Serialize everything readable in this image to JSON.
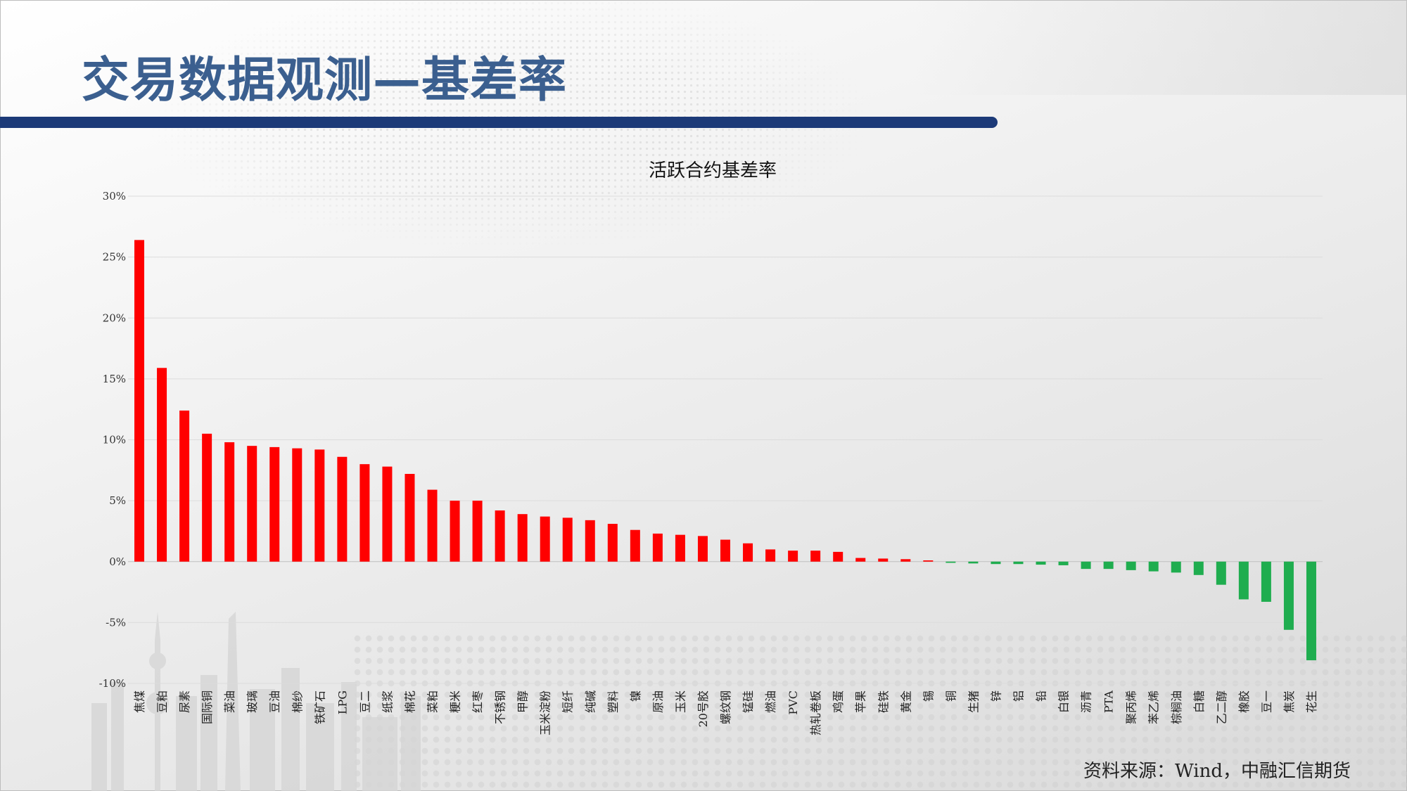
{
  "page": {
    "title": "交易数据观测—基差率",
    "source_note": "资料来源：Wind，中融汇信期货"
  },
  "colors": {
    "positive": "#ff0000",
    "negative": "#1fad4f",
    "header_bar": "#1c3a78",
    "title": "#3b5f8f"
  },
  "chart_data": {
    "type": "bar",
    "title": "活跃合约基差率",
    "xlabel": "",
    "ylabel": "",
    "ylim": [
      -10,
      30
    ],
    "yticks": [
      {
        "value": 30,
        "label": "30%"
      },
      {
        "value": 25,
        "label": "25%"
      },
      {
        "value": 20,
        "label": "20%"
      },
      {
        "value": 15,
        "label": "15%"
      },
      {
        "value": 10,
        "label": "10%"
      },
      {
        "value": 5,
        "label": "5%"
      },
      {
        "value": 0,
        "label": "0%"
      },
      {
        "value": -5,
        "label": "-5%"
      },
      {
        "value": -10,
        "label": "-10%"
      }
    ],
    "grid": true,
    "legend": "none",
    "categories": [
      "焦煤",
      "豆粕",
      "尿素",
      "国际铜",
      "菜油",
      "玻璃",
      "豆油",
      "棉纱",
      "铁矿石",
      "LPG",
      "豆二",
      "纸浆",
      "棉花",
      "菜粕",
      "粳米",
      "红枣",
      "不锈钢",
      "甲醇",
      "玉米淀粉",
      "短纤",
      "纯碱",
      "塑料",
      "镍",
      "原油",
      "玉米",
      "20号胶",
      "螺纹钢",
      "锰硅",
      "燃油",
      "PVC",
      "热轧卷板",
      "鸡蛋",
      "苹果",
      "硅铁",
      "黄金",
      "锡",
      "铜",
      "生猪",
      "锌",
      "铝",
      "铅",
      "白银",
      "沥青",
      "PTA",
      "聚丙烯",
      "苯乙烯",
      "棕榈油",
      "白糖",
      "乙二醇",
      "橡胶",
      "豆一",
      "焦炭",
      "花生"
    ],
    "values": [
      26.4,
      15.9,
      12.4,
      10.5,
      9.8,
      9.5,
      9.4,
      9.3,
      9.2,
      8.6,
      8.0,
      7.8,
      7.2,
      5.9,
      5.0,
      5.0,
      4.2,
      3.9,
      3.7,
      3.6,
      3.4,
      3.1,
      2.6,
      2.3,
      2.2,
      2.1,
      1.8,
      1.5,
      1.0,
      0.9,
      0.9,
      0.8,
      0.3,
      0.25,
      0.2,
      0.1,
      -0.1,
      -0.15,
      -0.2,
      -0.2,
      -0.25,
      -0.3,
      -0.6,
      -0.6,
      -0.7,
      -0.8,
      -0.9,
      -1.1,
      -1.9,
      -3.1,
      -3.3,
      -5.6,
      -8.1
    ]
  }
}
